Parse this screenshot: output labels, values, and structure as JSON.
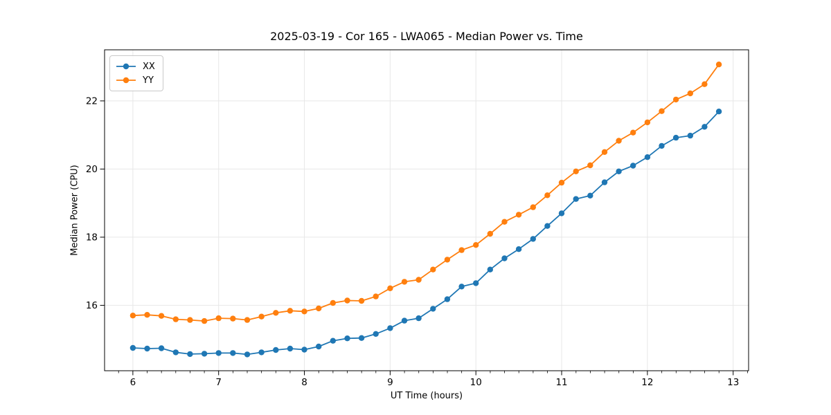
{
  "chart_data": {
    "type": "line",
    "title": "2025-03-19 - Cor 165 - LWA065 - Median Power vs. Time",
    "xlabel": "UT Time (hours)",
    "ylabel": "Median Power (CPU)",
    "xlim": [
      5.67,
      13.18
    ],
    "ylim": [
      14.08,
      23.5
    ],
    "x_ticks": [
      6,
      7,
      8,
      9,
      10,
      11,
      12,
      13
    ],
    "y_ticks": [
      16,
      18,
      20,
      22
    ],
    "x_minor_step_hours": 0.1667,
    "grid": "major-only",
    "grid_color": "#e7e7e7",
    "legend_position": "upper left",
    "x": [
      6.0,
      6.1667,
      6.3333,
      6.5,
      6.6667,
      6.8333,
      7.0,
      7.1667,
      7.3333,
      7.5,
      7.6667,
      7.8333,
      8.0,
      8.1667,
      8.3333,
      8.5,
      8.6667,
      8.8333,
      9.0,
      9.1667,
      9.3333,
      9.5,
      9.6667,
      9.8333,
      10.0,
      10.1667,
      10.3333,
      10.5,
      10.6667,
      10.8333,
      11.0,
      11.1667,
      11.3333,
      11.5,
      11.6667,
      11.8333,
      12.0,
      12.1667,
      12.3333,
      12.5,
      12.6667,
      12.8333
    ],
    "series": [
      {
        "name": "XX",
        "color": "#1f77b4",
        "values": [
          14.75,
          14.73,
          14.74,
          14.62,
          14.57,
          14.58,
          14.6,
          14.6,
          14.56,
          14.62,
          14.69,
          14.73,
          14.7,
          14.79,
          14.96,
          15.03,
          15.04,
          15.16,
          15.33,
          15.55,
          15.62,
          15.9,
          16.18,
          16.55,
          16.65,
          17.05,
          17.38,
          17.65,
          17.95,
          18.33,
          18.7,
          19.12,
          19.22,
          19.61,
          19.93,
          20.1,
          20.35,
          20.68,
          20.92,
          20.98,
          21.24,
          21.69
        ]
      },
      {
        "name": "YY",
        "color": "#ff7f0e",
        "values": [
          15.7,
          15.72,
          15.69,
          15.59,
          15.57,
          15.54,
          15.62,
          15.61,
          15.57,
          15.67,
          15.78,
          15.84,
          15.82,
          15.91,
          16.07,
          16.14,
          16.13,
          16.26,
          16.5,
          16.69,
          16.75,
          17.05,
          17.34,
          17.62,
          17.77,
          18.1,
          18.45,
          18.66,
          18.88,
          19.23,
          19.6,
          19.93,
          20.11,
          20.5,
          20.83,
          21.07,
          21.37,
          21.7,
          22.04,
          22.22,
          22.49,
          23.07
        ]
      }
    ]
  }
}
